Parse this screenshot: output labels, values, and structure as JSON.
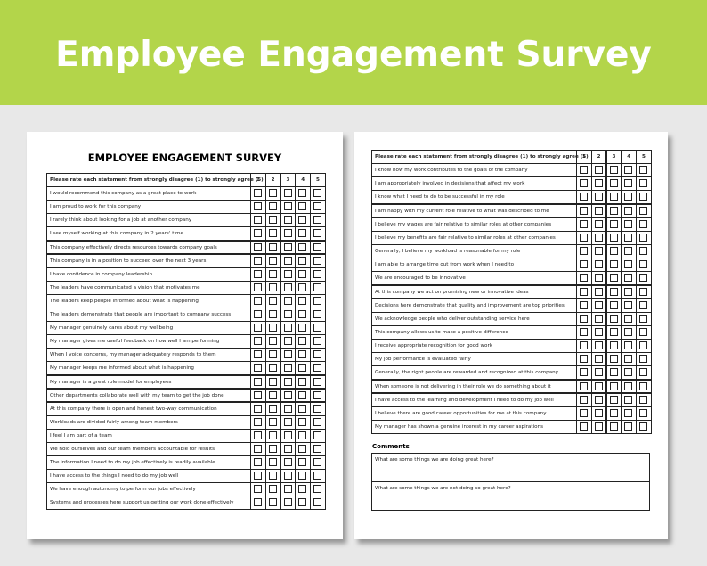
{
  "header": {
    "title": "Employee Engagement Survey"
  },
  "pages": [
    {
      "title": "EMPLOYEE ENGAGEMENT SURVEY",
      "table": {
        "columns": [
          "Please rate each statement from strongly disagree (1) to strongly agree (5)",
          "1",
          "2",
          "3",
          "4",
          "5"
        ],
        "rows": [
          "I would recommend this company as a great place to work",
          "I am proud to work for this company",
          "I rarely think about looking for a job at another company",
          "I see myself working at this company in 2 years' time",
          "This company effectively directs resources towards company goals",
          "This company is in a position to succeed over the next 3 years",
          "I have confidence in company leadership",
          "The leaders have communicated a vision that motivates me",
          "The leaders keep people informed about what is happening",
          "The leaders demonstrate that people are important to company success",
          "My manager genuinely cares about my wellbeing",
          "My manager gives me useful feedback on how well I am performing",
          "When I voice concerns, my manager adequately responds to them",
          "My manager keeps me informed about what is happening",
          "My manager is a great role model for employees",
          "Other departments collaborate well with my team to get the job done",
          "At this company there is open and honest two-way communication",
          "Workloads are divided fairly among team members",
          "I feel I am part of a team",
          "We hold ourselves and our team members accountable for results",
          "The information I need to do my job effectively is readily available",
          "I have access to the things I need to do my job well",
          "We have enough autonomy to perform our jobs effectively",
          "Systems and processes here support us getting our work done effectively"
        ]
      }
    },
    {
      "table": {
        "columns": [
          "Please rate each statement from strongly disagree (1) to strongly agree (5)",
          "1",
          "2",
          "3",
          "4",
          "5"
        ],
        "rows": [
          "I know how my work contributes to the goals of the company",
          "I am appropriately involved in decisions that affect my work",
          "I know what I need to do to be successful in my role",
          "I am happy with my current role relative to what was described to me",
          "I believe my wages are fair relative to similar roles at other companies",
          "I believe my benefits are fair relative to similar roles at other companies",
          "Generally, I believe my workload is reasonable for my role",
          "I am able to arrange time out from work when I need to",
          "We are encouraged to be innovative",
          "At this company we act on promising new or innovative ideas",
          "Decisions here demonstrate that quality and improvement are top priorities",
          "We acknowledge people who deliver outstanding service here",
          "This company allows us to make a positive difference",
          "I receive appropriate recognition for good work",
          "My job performance is evaluated fairly",
          "Generally, the right people are rewarded and recognized at this company",
          "When someone is not delivering in their role we do something about it",
          "I have access to the learning and development I need to do my job well",
          "I believe there are good career opportunities for me at this company",
          "My manager has shown a genuine interest in my career aspirations"
        ]
      },
      "comments": {
        "title": "Comments",
        "questions": [
          "What are some things we are doing great here?",
          "What are some things we are not doing so great here?"
        ]
      }
    }
  ]
}
